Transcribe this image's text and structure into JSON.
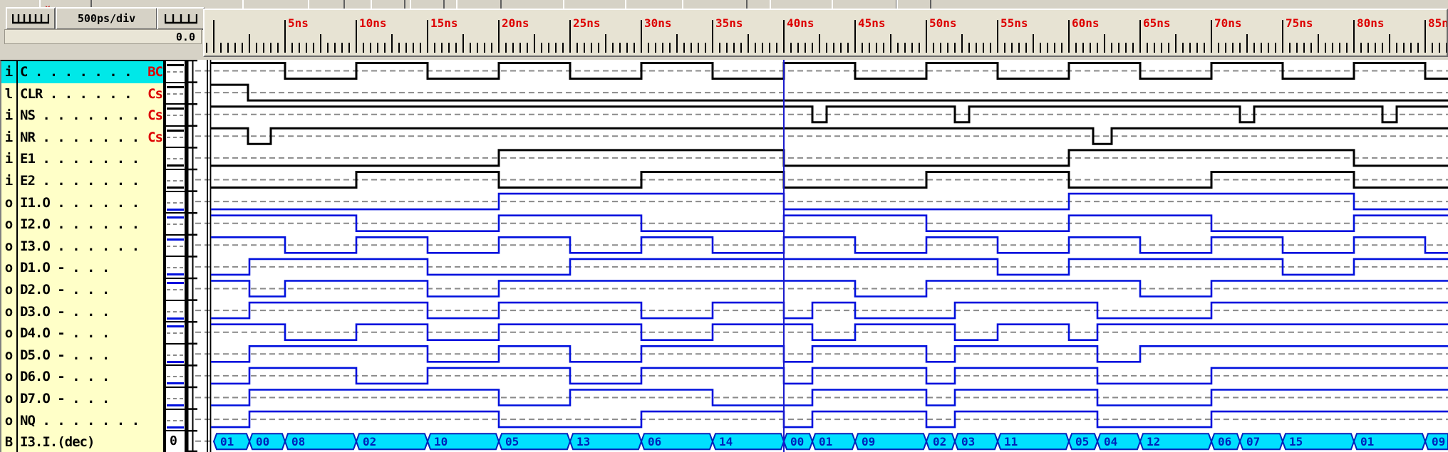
{
  "toolbar": {
    "timebase": "500ps/div",
    "cursor_time": "0.0",
    "top_button_count": 12
  },
  "ruler": {
    "tick_labels": [
      "5ns",
      "10ns",
      "15ns",
      "20ns",
      "25ns",
      "30ns",
      "35ns",
      "40ns",
      "45ns",
      "50ns",
      "55ns",
      "60ns",
      "65ns",
      "70ns",
      "75ns",
      "80ns",
      "85ns"
    ],
    "ns_per_major": 5,
    "ns_per_division": 0.5,
    "label_color": "#dd0000"
  },
  "cursor_ns": 40,
  "time_end_ns": 86.6,
  "colors": {
    "input_wave": "#000000",
    "output_wave": "#0010dd",
    "bus_fill": "#00e0ff",
    "bus_border": "#0022bb",
    "dashed_ref": "#8a8a8a",
    "cursor": "#1a1acc",
    "highlight_row": "#00e8e8",
    "tag": "#dd0000",
    "pane": "#ffffc8"
  },
  "signals": [
    {
      "type": "i",
      "label": "C . . . . . . .",
      "tag": "BC",
      "color": "black",
      "highlight": true,
      "v0": 1,
      "wave": [
        [
          0,
          1
        ],
        [
          5,
          0
        ],
        [
          10,
          1
        ],
        [
          15,
          0
        ],
        [
          20,
          1
        ],
        [
          25,
          0
        ],
        [
          30,
          1
        ],
        [
          35,
          0
        ],
        [
          40,
          1
        ],
        [
          45,
          0
        ],
        [
          50,
          1
        ],
        [
          55,
          0
        ],
        [
          60,
          1
        ],
        [
          65,
          0
        ],
        [
          70,
          1
        ],
        [
          75,
          0
        ],
        [
          80,
          1
        ],
        [
          85,
          0
        ]
      ]
    },
    {
      "type": "l",
      "label": "CLR . . . . . .",
      "tag": "Cs",
      "color": "black",
      "highlight": false,
      "v0": 1,
      "wave": [
        [
          0,
          1
        ],
        [
          2.4,
          0
        ]
      ]
    },
    {
      "type": "i",
      "label": "NS . . . . . . .",
      "tag": "Cs",
      "color": "black",
      "highlight": false,
      "v0": 1,
      "wave": [
        [
          0,
          1
        ],
        [
          42,
          0
        ],
        [
          43,
          1
        ],
        [
          52,
          0
        ],
        [
          53,
          1
        ],
        [
          72,
          0
        ],
        [
          73,
          1
        ],
        [
          82,
          0
        ],
        [
          83,
          1
        ]
      ]
    },
    {
      "type": "i",
      "label": "NR . . . . . . .",
      "tag": "Cs",
      "color": "black",
      "highlight": false,
      "v0": 1,
      "wave": [
        [
          0,
          1
        ],
        [
          2.4,
          0
        ],
        [
          4,
          1
        ],
        [
          61.7,
          0
        ],
        [
          63,
          1
        ]
      ]
    },
    {
      "type": "i",
      "label": "E1 . . . . . . .",
      "tag": "",
      "color": "black",
      "highlight": false,
      "v0": 0,
      "wave": [
        [
          0,
          0
        ],
        [
          20,
          1
        ],
        [
          40,
          0
        ],
        [
          60,
          1
        ],
        [
          80,
          0
        ]
      ]
    },
    {
      "type": "i",
      "label": "E2 . . . . . . .",
      "tag": "",
      "color": "black",
      "highlight": false,
      "v0": 0,
      "wave": [
        [
          0,
          0
        ],
        [
          10,
          1
        ],
        [
          20,
          0
        ],
        [
          30,
          1
        ],
        [
          40,
          0
        ],
        [
          50,
          1
        ],
        [
          60,
          0
        ],
        [
          70,
          1
        ],
        [
          80,
          0
        ]
      ]
    },
    {
      "type": "o",
      "label": "I1.O . . . . . .",
      "tag": "",
      "color": "blue",
      "highlight": false,
      "v0": 0,
      "wave": [
        [
          0,
          0
        ],
        [
          20,
          1
        ],
        [
          40,
          0
        ],
        [
          60,
          1
        ],
        [
          80,
          0
        ]
      ]
    },
    {
      "type": "o",
      "label": "I2.O . . . . . .",
      "tag": "",
      "color": "blue",
      "highlight": false,
      "v0": 1,
      "wave": [
        [
          0,
          1
        ],
        [
          10,
          0
        ],
        [
          20,
          1
        ],
        [
          30,
          0
        ],
        [
          40,
          1
        ],
        [
          50,
          0
        ],
        [
          60,
          1
        ],
        [
          70,
          0
        ],
        [
          80,
          1
        ]
      ]
    },
    {
      "type": "o",
      "label": "I3.O . . . . . .",
      "tag": "",
      "color": "blue",
      "highlight": false,
      "v0": 1,
      "wave": [
        [
          0,
          1
        ],
        [
          5,
          0
        ],
        [
          10,
          1
        ],
        [
          15,
          0
        ],
        [
          20,
          1
        ],
        [
          25,
          0
        ],
        [
          30,
          1
        ],
        [
          35,
          0
        ],
        [
          40,
          1
        ],
        [
          45,
          0
        ],
        [
          50,
          1
        ],
        [
          55,
          0
        ],
        [
          60,
          1
        ],
        [
          65,
          0
        ],
        [
          70,
          1
        ],
        [
          75,
          0
        ],
        [
          80,
          1
        ],
        [
          85,
          0
        ]
      ]
    },
    {
      "type": "o",
      "label": "D1.O  -   . . .",
      "tag": "",
      "color": "blue",
      "highlight": false,
      "v0": 0,
      "wave": [
        [
          0,
          0
        ],
        [
          2.5,
          1
        ],
        [
          15,
          0
        ],
        [
          25,
          1
        ],
        [
          55,
          0
        ],
        [
          60,
          1
        ],
        [
          75,
          0
        ],
        [
          80,
          1
        ]
      ]
    },
    {
      "type": "o",
      "label": "D2.O  -   . . .",
      "tag": "",
      "color": "blue",
      "highlight": false,
      "v0": 1,
      "wave": [
        [
          0,
          1
        ],
        [
          2.5,
          0
        ],
        [
          5,
          1
        ],
        [
          15,
          0
        ],
        [
          20,
          1
        ],
        [
          45,
          0
        ],
        [
          50,
          1
        ],
        [
          65,
          0
        ],
        [
          70,
          1
        ]
      ]
    },
    {
      "type": "o",
      "label": "D3.O  -   . . .",
      "tag": "",
      "color": "blue",
      "highlight": false,
      "v0": 0,
      "wave": [
        [
          0,
          0
        ],
        [
          2.5,
          1
        ],
        [
          15,
          0
        ],
        [
          20,
          1
        ],
        [
          30,
          0
        ],
        [
          35,
          1
        ],
        [
          40,
          0
        ],
        [
          42,
          1
        ],
        [
          45,
          0
        ],
        [
          52,
          1
        ],
        [
          62,
          0
        ],
        [
          70,
          1
        ]
      ]
    },
    {
      "type": "o",
      "label": "D4.O  -   . . .",
      "tag": "",
      "color": "blue",
      "highlight": false,
      "v0": 1,
      "wave": [
        [
          0,
          1
        ],
        [
          5,
          0
        ],
        [
          10,
          1
        ],
        [
          15,
          0
        ],
        [
          20,
          1
        ],
        [
          30,
          0
        ],
        [
          35,
          1
        ],
        [
          42,
          0
        ],
        [
          45,
          1
        ],
        [
          52,
          0
        ],
        [
          55,
          1
        ],
        [
          60,
          0
        ],
        [
          62,
          1
        ]
      ]
    },
    {
      "type": "o",
      "label": "D5.O  -   . . .",
      "tag": "",
      "color": "blue",
      "highlight": false,
      "v0": 0,
      "wave": [
        [
          0,
          0
        ],
        [
          2.5,
          1
        ],
        [
          15,
          0
        ],
        [
          20,
          1
        ],
        [
          25,
          0
        ],
        [
          30,
          1
        ],
        [
          40,
          0
        ],
        [
          42,
          1
        ],
        [
          50,
          0
        ],
        [
          52,
          1
        ],
        [
          62,
          0
        ],
        [
          65,
          1
        ]
      ]
    },
    {
      "type": "o",
      "label": "D6.O  -   . . .",
      "tag": "",
      "color": "blue",
      "highlight": false,
      "v0": 0,
      "wave": [
        [
          0,
          0
        ],
        [
          2.5,
          1
        ],
        [
          10,
          0
        ],
        [
          15,
          1
        ],
        [
          25,
          0
        ],
        [
          30,
          1
        ],
        [
          40,
          0
        ],
        [
          42,
          1
        ],
        [
          50,
          0
        ],
        [
          52,
          1
        ],
        [
          62,
          0
        ],
        [
          70,
          1
        ]
      ]
    },
    {
      "type": "o",
      "label": "D7.O  -   . . .",
      "tag": "",
      "color": "blue",
      "highlight": false,
      "v0": 0,
      "wave": [
        [
          0,
          0
        ],
        [
          2.5,
          1
        ],
        [
          20,
          0
        ],
        [
          25,
          1
        ],
        [
          35,
          0
        ],
        [
          42,
          1
        ],
        [
          50,
          0
        ],
        [
          52,
          1
        ],
        [
          62,
          0
        ],
        [
          70,
          1
        ]
      ]
    },
    {
      "type": "o",
      "label": "NQ . . . . . . .",
      "tag": "",
      "color": "blue",
      "highlight": false,
      "v0": 0,
      "wave": [
        [
          0,
          0
        ],
        [
          2.5,
          1
        ],
        [
          20,
          0
        ],
        [
          30,
          1
        ],
        [
          40,
          0
        ],
        [
          42,
          1
        ],
        [
          50,
          0
        ],
        [
          52,
          1
        ],
        [
          62,
          0
        ],
        [
          70,
          1
        ]
      ]
    },
    {
      "type": "B",
      "label": "I3.I.(dec)",
      "tag": "",
      "color": "bus",
      "highlight": false,
      "v0": "0",
      "bus": [
        [
          0,
          2.5,
          "01"
        ],
        [
          2.5,
          5,
          "00"
        ],
        [
          5,
          10,
          "08"
        ],
        [
          10,
          15,
          "02"
        ],
        [
          15,
          20,
          "10"
        ],
        [
          20,
          25,
          "05"
        ],
        [
          25,
          30,
          "13"
        ],
        [
          30,
          35,
          "06"
        ],
        [
          35,
          40,
          "14"
        ],
        [
          40,
          42,
          "00"
        ],
        [
          42,
          45,
          "01"
        ],
        [
          45,
          50,
          "09"
        ],
        [
          50,
          52,
          "02"
        ],
        [
          52,
          55,
          "03"
        ],
        [
          55,
          60,
          "11"
        ],
        [
          60,
          62,
          "05"
        ],
        [
          62,
          65,
          "04"
        ],
        [
          65,
          70,
          "12"
        ],
        [
          70,
          72,
          "06"
        ],
        [
          72,
          75,
          "07"
        ],
        [
          75,
          80,
          "15"
        ],
        [
          80,
          85,
          "01"
        ],
        [
          85,
          86.6,
          "09"
        ]
      ]
    }
  ]
}
